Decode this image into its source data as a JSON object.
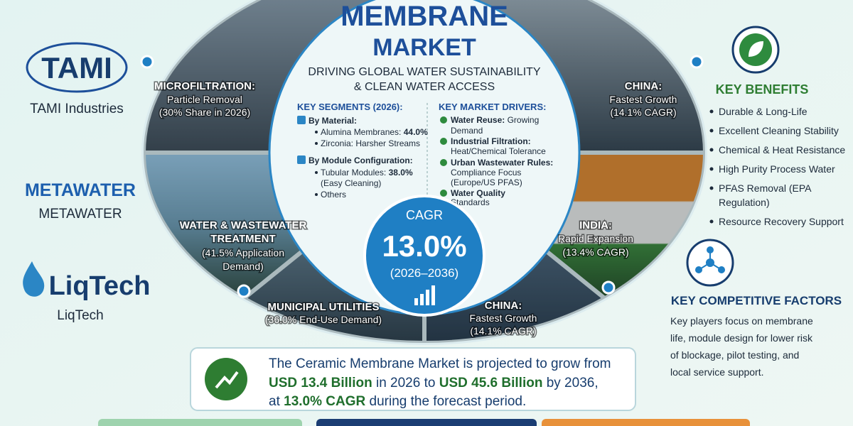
{
  "logos": [
    {
      "name": "TAMI",
      "caption": "TAMI Industries"
    },
    {
      "name": "METAWATER",
      "caption": "METAWATER"
    },
    {
      "name": "LiqTech",
      "caption": "LiqTech"
    }
  ],
  "title": [
    "MEMBRANE",
    "MARKET"
  ],
  "subtitle": [
    "DRIVING GLOBAL WATER SUSTAINABILITY",
    "& CLEAN WATER ACCESS"
  ],
  "key_segments": {
    "heading": "KEY SEGMENTS (2026):",
    "groups": [
      {
        "heading": "By Material:",
        "items": [
          {
            "label": "Alumina Membranes:",
            "value": "44.0%"
          },
          {
            "label": "Zirconia: Harsher Streams"
          }
        ]
      },
      {
        "heading": "By Module Configuration:",
        "items": [
          {
            "label": "Tubular Modules:",
            "value": "38.0%",
            "note": "(Easy Cleaning)"
          },
          {
            "label": "Others"
          }
        ]
      }
    ]
  },
  "key_drivers": {
    "heading": "KEY MARKET DRIVERS:",
    "items": [
      {
        "label": "Water Reuse:",
        "lines": [
          "Growing",
          "Demand"
        ]
      },
      {
        "label": "Industrial Filtration:",
        "lines": [
          "Heat/Chemical Tolerance"
        ]
      },
      {
        "label": "Urban Wastewater Rules:",
        "lines": [
          "Compliance Focus",
          "(Europe/US PFAS)"
        ]
      },
      {
        "label": "Water Quality",
        "lines": [
          "Standards"
        ]
      }
    ]
  },
  "cagr": {
    "label": "CAGR",
    "value": "13.0%",
    "period": "(2026–2036)"
  },
  "segments": [
    {
      "title": [
        "MICROFILTRATION:"
      ],
      "lines": [
        "Particle Removal",
        "(30% Share in 2026)"
      ]
    },
    {
      "title": [
        "WATER & WASTEWATER",
        "TREATMENT"
      ],
      "lines": [
        "(41.5% Application",
        "Demand)"
      ]
    },
    {
      "title": [
        "MUNICIPAL UTILITIES"
      ],
      "lines": [
        "(36.0% End-Use Demand)"
      ]
    },
    {
      "title": [
        "CHINA:"
      ],
      "lines": [
        "Fastest Growth",
        "(14.1% CAGR)"
      ]
    },
    {
      "title": [
        "INDIA:"
      ],
      "lines": [
        "Rapid Expansion",
        "(13.4% CAGR)"
      ]
    },
    {
      "title": [
        "CHINA:"
      ],
      "lines": [
        "Fastest Growth",
        "(14.1% CAGR)"
      ]
    }
  ],
  "summary": {
    "parts": [
      "The Ceramic Membrane Market is projected to grow from",
      "USD 13.4 Billion",
      " in 2026 to ",
      "USD 45.6 Billion",
      " by 2036,",
      "at ",
      "13.0% CAGR",
      " during the forecast period."
    ]
  },
  "benefits": {
    "heading": "KEY BENEFITS",
    "items": [
      [
        "Durable & Long-Life"
      ],
      [
        "Excellent Cleaning Stability"
      ],
      [
        "Chemical & Heat Resistance"
      ],
      [
        "High Purity Process Water"
      ],
      [
        "PFAS Removal (EPA",
        "Regulation)"
      ],
      [
        "Resource Recovery Support"
      ]
    ]
  },
  "competitive": {
    "heading": "KEY COMPETITIVE FACTORS",
    "lines": [
      "Key players focus on membrane",
      "life, module design for lower risk",
      "of blockage, pilot testing, and",
      "local service support."
    ]
  }
}
